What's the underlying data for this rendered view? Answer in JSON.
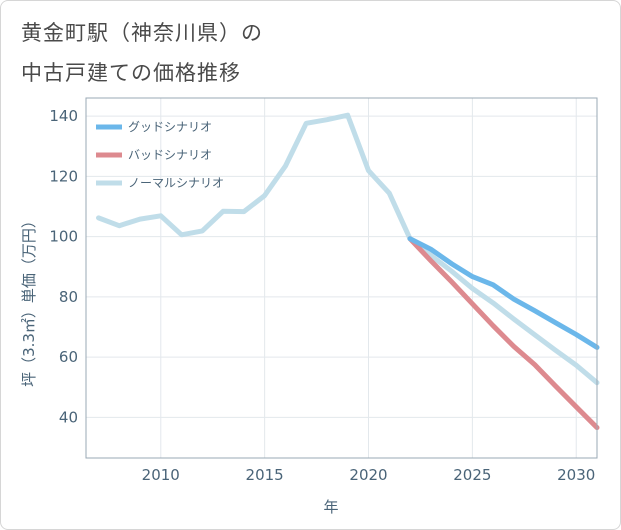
{
  "title": {
    "line1": "黄金町駅（神奈川県）の",
    "line2": "中古戸建ての価格推移"
  },
  "chart_data": {
    "type": "line",
    "title": "黄金町駅（神奈川県）の中古戸建ての価格推移",
    "xlabel": "年",
    "ylabel": "坪（3.3㎡）単価（万円）",
    "xlim": [
      2006.4,
      2031
    ],
    "ylim": [
      26.5,
      146
    ],
    "x_ticks": [
      2010,
      2015,
      2020,
      2025,
      2030
    ],
    "y_ticks": [
      40,
      60,
      80,
      100,
      120,
      140
    ],
    "grid": true,
    "legend_position": "top-left",
    "series": [
      {
        "name": "グッドシナリオ",
        "color": "#6bb7ea",
        "x": [
          2022,
          2023,
          2024,
          2025,
          2026,
          2027,
          2028,
          2029,
          2030,
          2031
        ],
        "y": [
          99.3,
          95.8,
          91,
          86.7,
          84,
          79.2,
          75.4,
          71.4,
          67.5,
          63.2
        ]
      },
      {
        "name": "バッドシナリオ",
        "color": "#dd8a8f",
        "x": [
          2022,
          2023,
          2024,
          2025,
          2026,
          2027,
          2028,
          2029,
          2030,
          2031
        ],
        "y": [
          99.3,
          92,
          85,
          77.7,
          70.4,
          63.5,
          57.5,
          50.4,
          43.5,
          36.6
        ]
      },
      {
        "name": "ノーマルシナリオ",
        "color": "#c0dde9",
        "x": [
          2007,
          2008,
          2009,
          2010,
          2011,
          2012,
          2013,
          2014,
          2015,
          2016,
          2017,
          2018,
          2019,
          2020,
          2021,
          2022,
          2023,
          2024,
          2025,
          2026,
          2027,
          2028,
          2029,
          2030,
          2031
        ],
        "y": [
          106.2,
          103.6,
          105.8,
          106.9,
          100.6,
          101.9,
          108.4,
          108.3,
          113.6,
          123.4,
          137.6,
          138.8,
          140.3,
          121.9,
          114.4,
          99.3,
          93.8,
          88.5,
          82.8,
          78,
          72.6,
          67.4,
          62.3,
          57.3,
          51.5
        ]
      }
    ]
  }
}
